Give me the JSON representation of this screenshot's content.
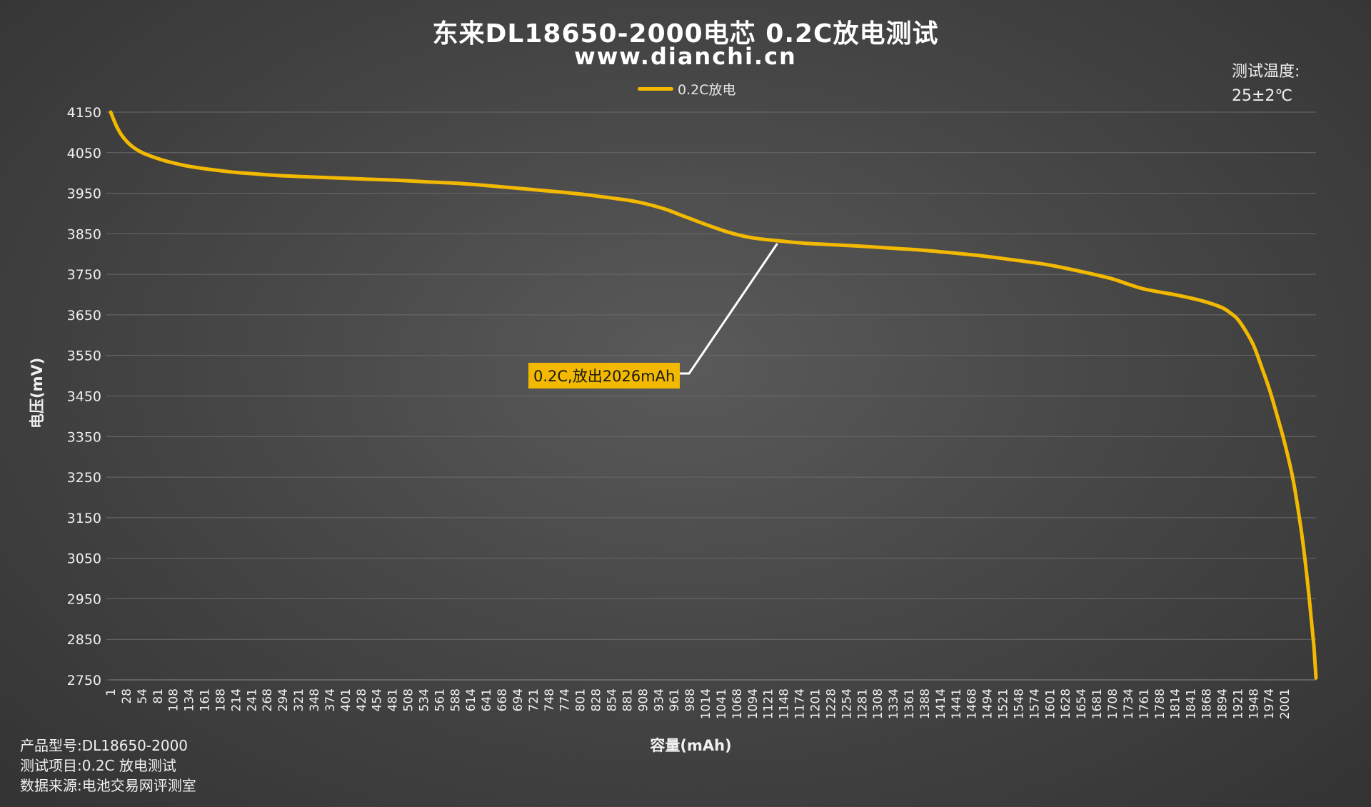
{
  "header": {
    "title": "东来DL18650-2000电芯 0.2C放电测试",
    "subtitle": "www.dianchi.cn"
  },
  "temperature": {
    "label": "测试温度:",
    "value": "25±2℃"
  },
  "footer": {
    "model": "产品型号:DL18650-2000",
    "item": "测试项目:0.2C 放电测试",
    "source": "数据来源:电池交易网评测室"
  },
  "colors": {
    "series": "#f2b900",
    "grid": "#6a6a6a",
    "callout_line": "#ffffff"
  },
  "chart_data": {
    "type": "line",
    "ylabel": "电压(mV)",
    "xlabel": "容量(mAh)",
    "ylim": [
      2750,
      4150
    ],
    "xlim": [
      1,
      2026
    ],
    "yticks": [
      4150,
      4050,
      3950,
      3850,
      3750,
      3650,
      3550,
      3450,
      3350,
      3250,
      3150,
      3050,
      2950,
      2850,
      2750
    ],
    "xticks": [
      "1",
      "28",
      "54",
      "81",
      "108",
      "134",
      "161",
      "188",
      "214",
      "241",
      "268",
      "294",
      "321",
      "348",
      "374",
      "401",
      "428",
      "454",
      "481",
      "508",
      "534",
      "561",
      "588",
      "614",
      "641",
      "668",
      "694",
      "721",
      "748",
      "774",
      "801",
      "828",
      "854",
      "881",
      "908",
      "934",
      "961",
      "988",
      "1014",
      "1041",
      "1068",
      "1094",
      "1121",
      "1148",
      "1174",
      "1201",
      "1228",
      "1254",
      "1281",
      "1308",
      "1334",
      "1361",
      "1388",
      "1414",
      "1441",
      "1468",
      "1494",
      "1521",
      "1548",
      "1574",
      "1601",
      "1628",
      "1654",
      "1681",
      "1708",
      "1734",
      "1761",
      "1788",
      "1814",
      "1841",
      "1868",
      "1894",
      "1921",
      "1948",
      "1974",
      "2001"
    ],
    "grid": "horizontal",
    "legend_position": "top-center",
    "series": [
      {
        "name": "0.2C放电",
        "x": [
          1,
          10,
          20,
          35,
          54,
          81,
          108,
          134,
          161,
          188,
          214,
          241,
          268,
          294,
          321,
          374,
          428,
          481,
          534,
          588,
          641,
          694,
          748,
          801,
          854,
          881,
          908,
          934,
          961,
          988,
          1014,
          1041,
          1068,
          1094,
          1121,
          1148,
          1174,
          1201,
          1254,
          1308,
          1361,
          1414,
          1468,
          1521,
          1574,
          1628,
          1681,
          1708,
          1734,
          1761,
          1788,
          1814,
          1841,
          1868,
          1881,
          1894,
          1908,
          1921,
          1935,
          1948,
          1961,
          1974,
          1988,
          2001,
          2008,
          2014,
          2018,
          2022,
          2024,
          2026
        ],
        "y": [
          4150,
          4118,
          4092,
          4068,
          4050,
          4035,
          4024,
          4016,
          4010,
          4005,
          4001,
          3998,
          3995,
          3993,
          3991,
          3988,
          3985,
          3982,
          3978,
          3974,
          3968,
          3961,
          3954,
          3946,
          3936,
          3930,
          3921,
          3910,
          3895,
          3880,
          3866,
          3853,
          3843,
          3837,
          3833,
          3829,
          3826,
          3824,
          3820,
          3815,
          3810,
          3803,
          3795,
          3785,
          3774,
          3758,
          3740,
          3727,
          3715,
          3707,
          3700,
          3692,
          3682,
          3668,
          3656,
          3640,
          3610,
          3575,
          3520,
          3465,
          3400,
          3330,
          3240,
          3120,
          3040,
          2960,
          2900,
          2840,
          2800,
          2755
        ]
      }
    ],
    "annotation": {
      "text": "0.2C,放出2026mAh",
      "x": 1121,
      "y": 3833
    }
  }
}
